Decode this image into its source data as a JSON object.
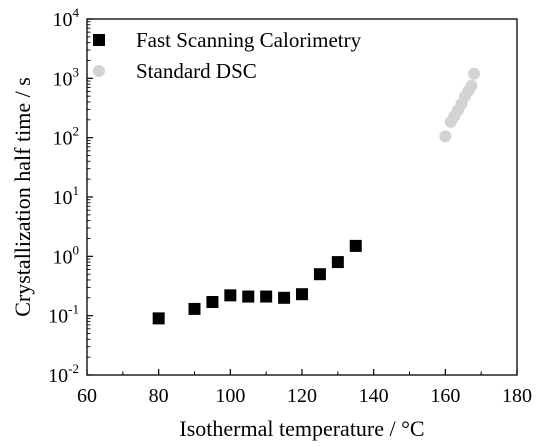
{
  "chart_data": {
    "type": "scatter",
    "xlabel": "Isothermal temperature / °C",
    "ylabel": "Crystallization half time / s",
    "xlim": [
      60,
      180
    ],
    "ylim_log10": [
      -2,
      4
    ],
    "yscale": "log",
    "x_ticks": [
      "60",
      "80",
      "100",
      "120",
      "140",
      "160",
      "180"
    ],
    "y_ticks": [
      {
        "base": "10",
        "exp": "-2"
      },
      {
        "base": "10",
        "exp": "-1"
      },
      {
        "base": "10",
        "exp": "0"
      },
      {
        "base": "10",
        "exp": "1"
      },
      {
        "base": "10",
        "exp": "2"
      },
      {
        "base": "10",
        "exp": "3"
      },
      {
        "base": "10",
        "exp": "4"
      }
    ],
    "grid": false,
    "legend_position": "top-left",
    "series": [
      {
        "name": "Fast Scanning Calorimetry",
        "marker": "square",
        "color": "#000000",
        "x": [
          80,
          90,
          95,
          100,
          105,
          110,
          115,
          120,
          125,
          130,
          135
        ],
        "y": [
          0.09,
          0.13,
          0.17,
          0.22,
          0.21,
          0.21,
          0.2,
          0.23,
          0.5,
          0.8,
          1.5
        ]
      },
      {
        "name": "Standard DSC",
        "marker": "circle",
        "color": "#d3d3d3",
        "x": [
          160,
          161.5,
          162.5,
          163.5,
          164.5,
          165.5,
          166.5,
          167.3,
          168
        ],
        "y": [
          105,
          185,
          230,
          290,
          370,
          500,
          620,
          750,
          1200
        ]
      }
    ]
  }
}
